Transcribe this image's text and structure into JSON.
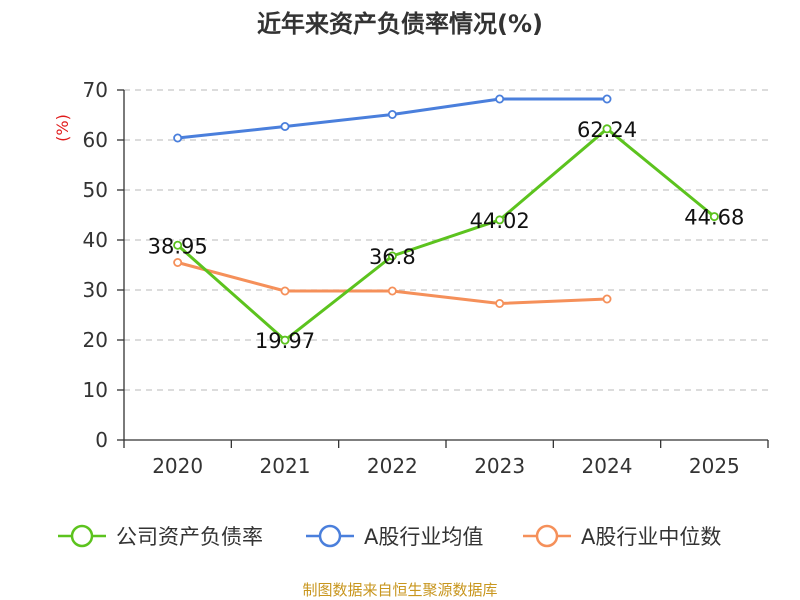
{
  "chart_data": {
    "type": "line",
    "title": "近年来资产负债率情况(%)",
    "ylabel": "(%)",
    "xlabel": "",
    "categories": [
      "2020",
      "2021",
      "2022",
      "2023",
      "2024",
      "2025"
    ],
    "ylim": [
      0,
      70
    ],
    "yticks": [
      0,
      10,
      20,
      30,
      40,
      50,
      60,
      70
    ],
    "grid": true,
    "legend_position": "bottom",
    "series": [
      {
        "name": "公司资产负债率",
        "color": "#5cc31e",
        "values": [
          38.95,
          19.97,
          36.8,
          44.02,
          62.24,
          44.68
        ],
        "labels": [
          "38.95",
          "19.97",
          "36.8",
          "44.02",
          "62.24",
          "44.68"
        ]
      },
      {
        "name": "A股行业均值",
        "color": "#4a7fdc",
        "values": [
          60.4,
          62.7,
          65.1,
          68.2,
          68.2,
          null
        ],
        "labels": []
      },
      {
        "name": "A股行业中位数",
        "color": "#f5905a",
        "values": [
          35.5,
          29.8,
          29.8,
          27.3,
          28.2,
          null
        ],
        "labels": []
      }
    ]
  },
  "source": "制图数据来自恒生聚源数据库"
}
